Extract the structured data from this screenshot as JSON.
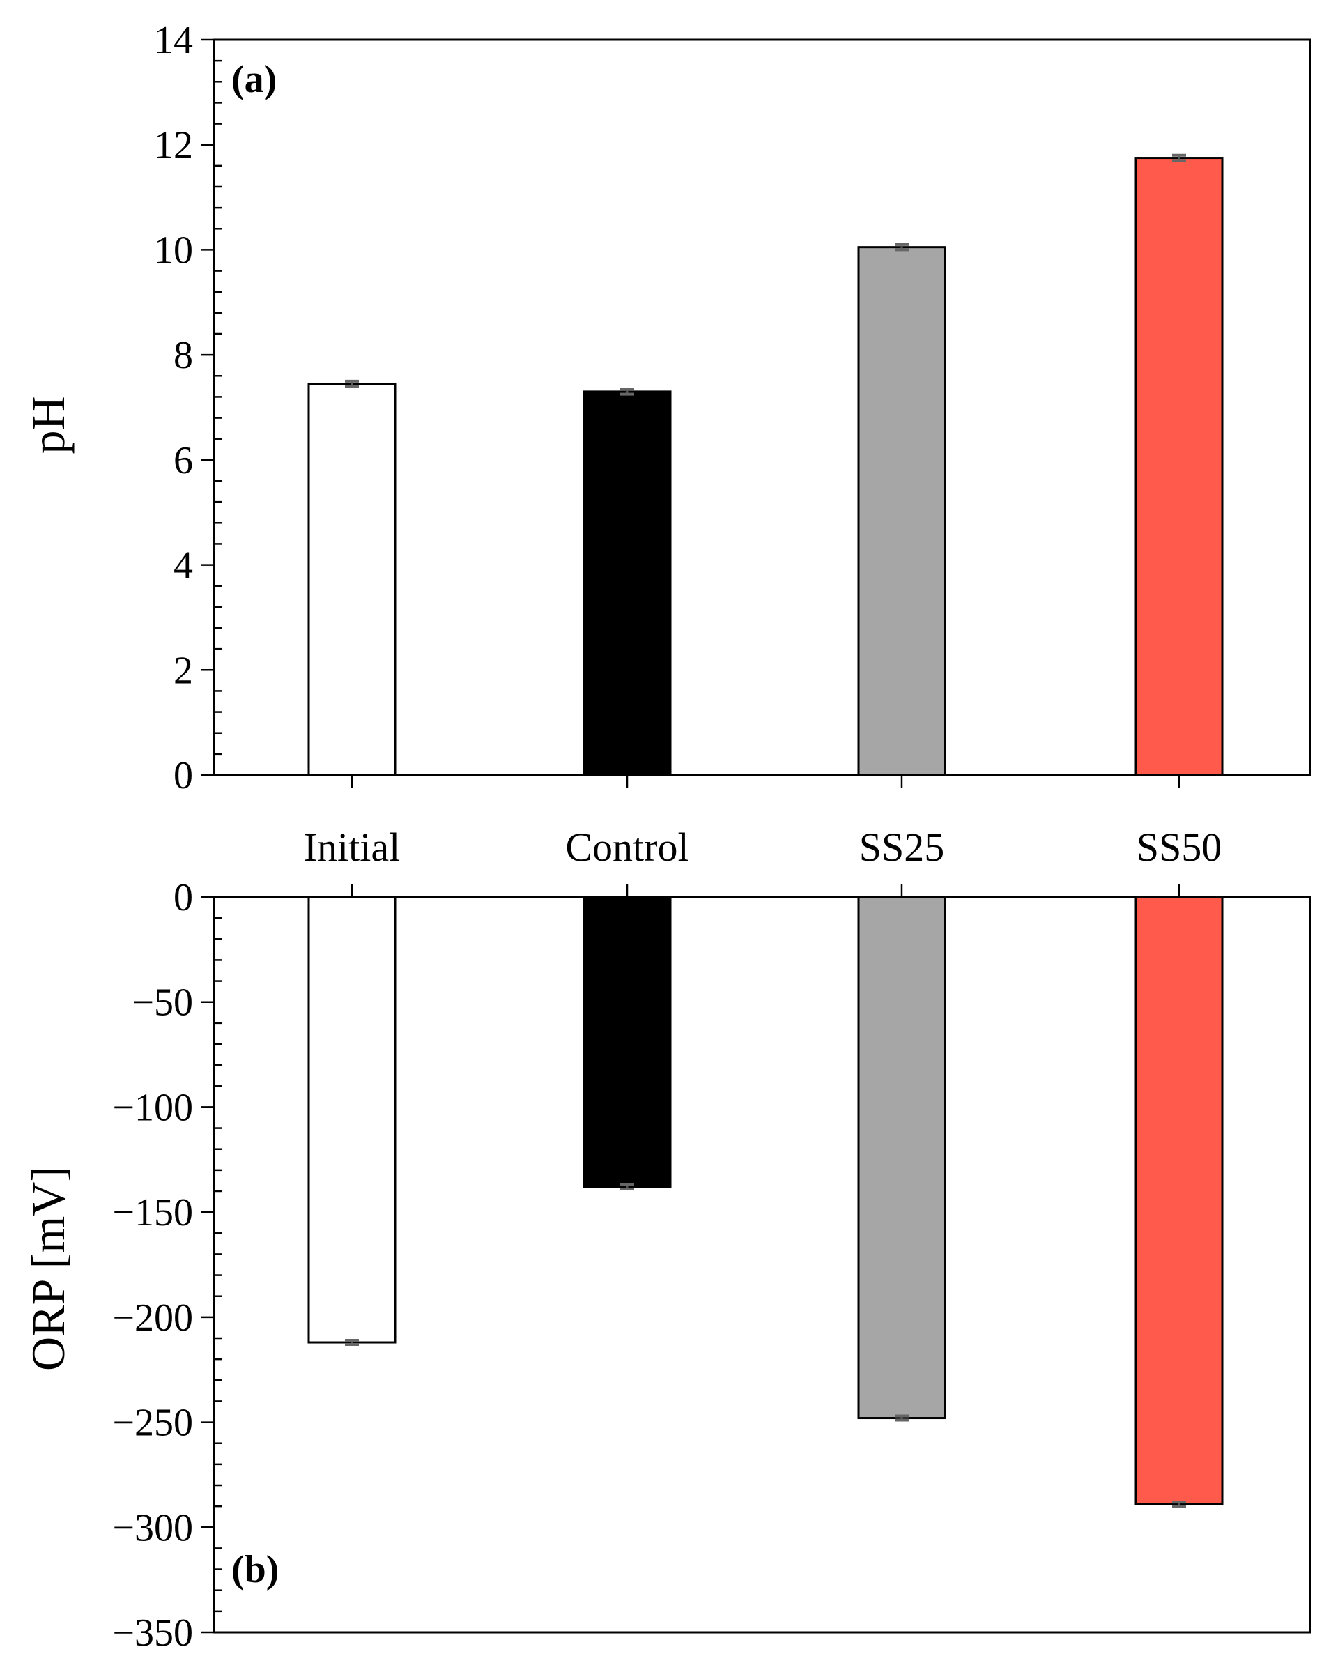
{
  "chart_data": [
    {
      "type": "bar",
      "panel_label": "(a)",
      "ylabel": "pH",
      "categories": [
        "Initial",
        "Control",
        "SS25",
        "SS50"
      ],
      "values": [
        7.45,
        7.3,
        10.05,
        11.75
      ],
      "errors": [
        0.05,
        0.05,
        0.05,
        0.05
      ],
      "ylim": [
        0,
        14
      ],
      "yticks": [
        0,
        2,
        4,
        6,
        8,
        10,
        12,
        14
      ],
      "ytick_labels": [
        "0",
        "2",
        "4",
        "6",
        "8",
        "10",
        "12",
        "14"
      ],
      "colors": [
        "#ffffff",
        "#000000",
        "#a6a6a6",
        "#ff5a4c"
      ],
      "grid": false,
      "legend": "none"
    },
    {
      "type": "bar",
      "panel_label": "(b)",
      "ylabel": "ORP [mV]",
      "categories": [
        "Initial",
        "Control",
        "SS25",
        "SS50"
      ],
      "values": [
        -212,
        -138,
        -248,
        -289
      ],
      "errors": [
        1,
        1,
        1,
        1
      ],
      "ylim": [
        -350,
        0
      ],
      "yticks": [
        0,
        -50,
        -100,
        -150,
        -200,
        -250,
        -300,
        -350
      ],
      "ytick_labels": [
        "0",
        "−50",
        "−100",
        "−150",
        "−200",
        "−250",
        "−300",
        "−350"
      ],
      "colors": [
        "#ffffff",
        "#000000",
        "#a6a6a6",
        "#ff5a4c"
      ],
      "grid": false,
      "legend": "none"
    }
  ]
}
